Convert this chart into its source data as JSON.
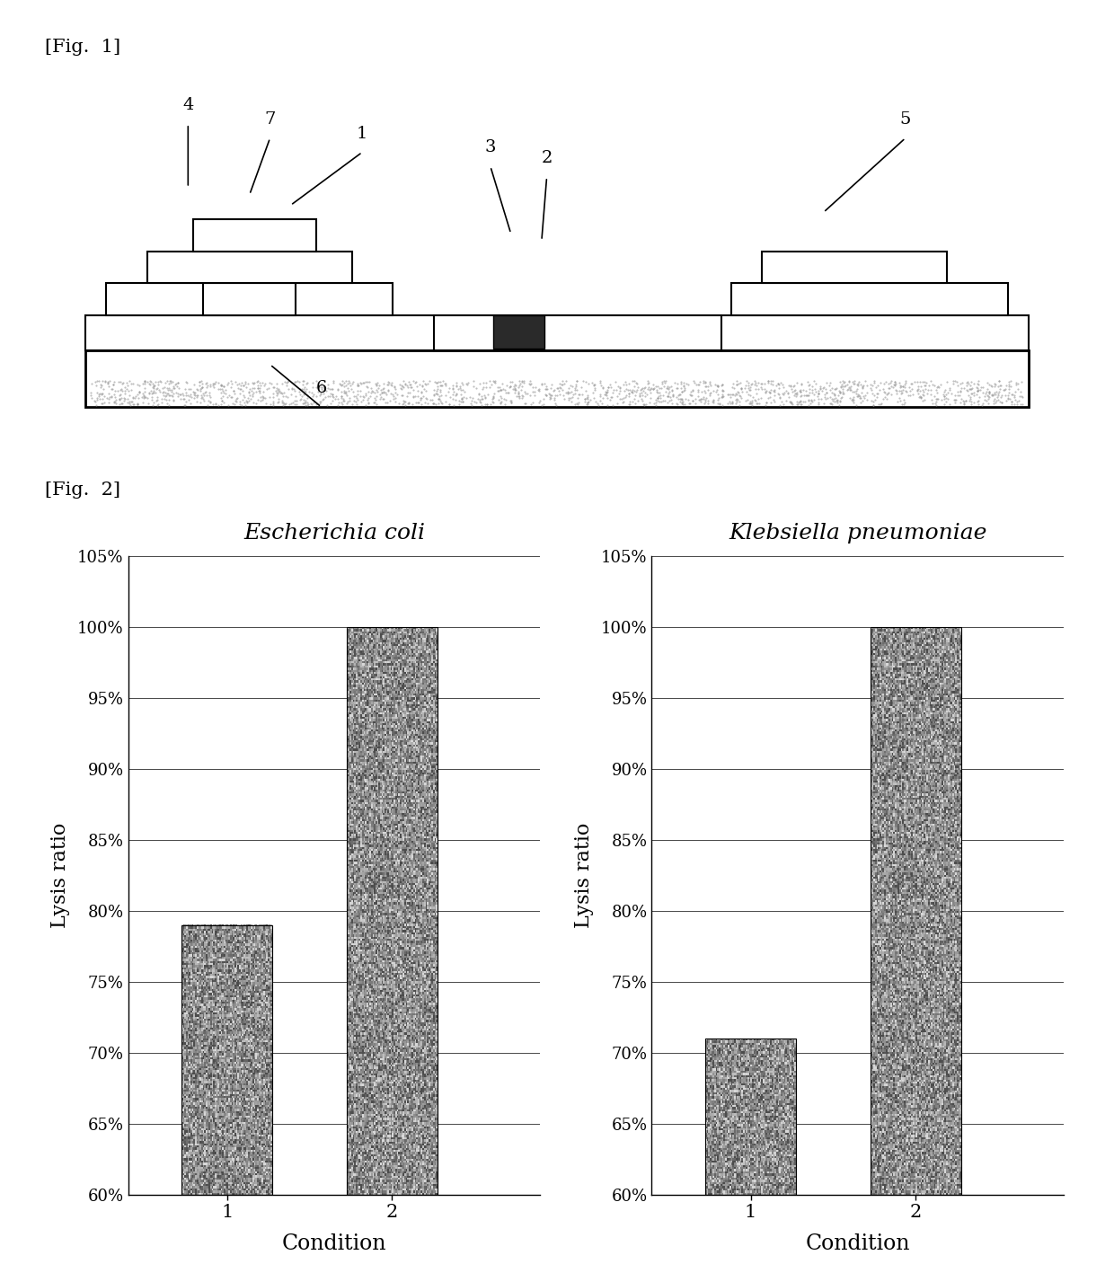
{
  "fig1_label": "[Fig.  1]",
  "fig2_label": "[Fig.  2]",
  "chart1_title": "Escherichia coli",
  "chart2_title": "Klebsiella pneumoniae",
  "categories": [
    "1",
    "2"
  ],
  "values_ecoli": [
    0.79,
    1.0
  ],
  "values_klebs": [
    0.71,
    1.0
  ],
  "ylabel": "Lysis ratio",
  "xlabel": "Condition",
  "ylim_min": 0.6,
  "ylim_max": 1.05,
  "yticks": [
    0.6,
    0.65,
    0.7,
    0.75,
    0.8,
    0.85,
    0.9,
    0.95,
    1.0,
    1.05
  ],
  "ytick_labels": [
    "60%",
    "65%",
    "70%",
    "75%",
    "80%",
    "85%",
    "90%",
    "95%",
    "100%",
    "105%"
  ],
  "bar_color": "#888888",
  "background_color": "#ffffff"
}
